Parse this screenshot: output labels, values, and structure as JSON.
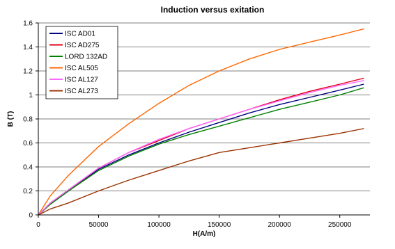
{
  "chart_data": {
    "type": "line",
    "title": "Induction versus exitation",
    "xlabel": "H(A/m)",
    "ylabel": "B (T)",
    "xlim": [
      0,
      275000
    ],
    "ylim": [
      0,
      1.6
    ],
    "xticks": [
      0,
      50000,
      100000,
      150000,
      200000,
      250000
    ],
    "xtick_labels": [
      "0",
      "50000",
      "100000",
      "150000",
      "200000",
      "250000"
    ],
    "yticks": [
      0,
      0.2,
      0.4,
      0.6,
      0.8,
      1,
      1.2,
      1.4,
      1.6
    ],
    "ytick_labels": [
      "0",
      "0.2",
      "0.4",
      "0.6",
      "0.8",
      "1",
      "1.2",
      "1.4",
      "1.6"
    ],
    "grid": "horizontal",
    "legend_position": "top-left",
    "x": [
      0,
      10000,
      25000,
      50000,
      75000,
      100000,
      125000,
      150000,
      175000,
      200000,
      225000,
      250000,
      270000
    ],
    "series": [
      {
        "name": "ISC AD01",
        "color": "#000080",
        "values": [
          0,
          0.09,
          0.2,
          0.38,
          0.5,
          0.6,
          0.69,
          0.77,
          0.85,
          0.92,
          0.98,
          1.04,
          1.09
        ]
      },
      {
        "name": "ISC AD275",
        "color": "#e0001b",
        "values": [
          0,
          0.1,
          0.21,
          0.39,
          0.52,
          0.62,
          0.72,
          0.8,
          0.88,
          0.96,
          1.03,
          1.09,
          1.14
        ]
      },
      {
        "name": "LORD 132AD",
        "color": "#008000",
        "values": [
          0,
          0.09,
          0.2,
          0.37,
          0.49,
          0.59,
          0.67,
          0.74,
          0.81,
          0.88,
          0.94,
          1.0,
          1.06
        ]
      },
      {
        "name": "ISC AL505",
        "color": "#ff6600",
        "values": [
          0,
          0.16,
          0.33,
          0.57,
          0.76,
          0.93,
          1.08,
          1.2,
          1.3,
          1.38,
          1.44,
          1.5,
          1.55
        ]
      },
      {
        "name": "ISC AL127",
        "color": "#ff66ff",
        "values": [
          0,
          0.1,
          0.21,
          0.39,
          0.52,
          0.63,
          0.72,
          0.8,
          0.88,
          0.95,
          1.02,
          1.08,
          1.12
        ]
      },
      {
        "name": "ISC AL273",
        "color": "#993300",
        "values": [
          0,
          0.05,
          0.1,
          0.2,
          0.29,
          0.37,
          0.45,
          0.52,
          0.56,
          0.6,
          0.64,
          0.68,
          0.72
        ]
      }
    ]
  }
}
